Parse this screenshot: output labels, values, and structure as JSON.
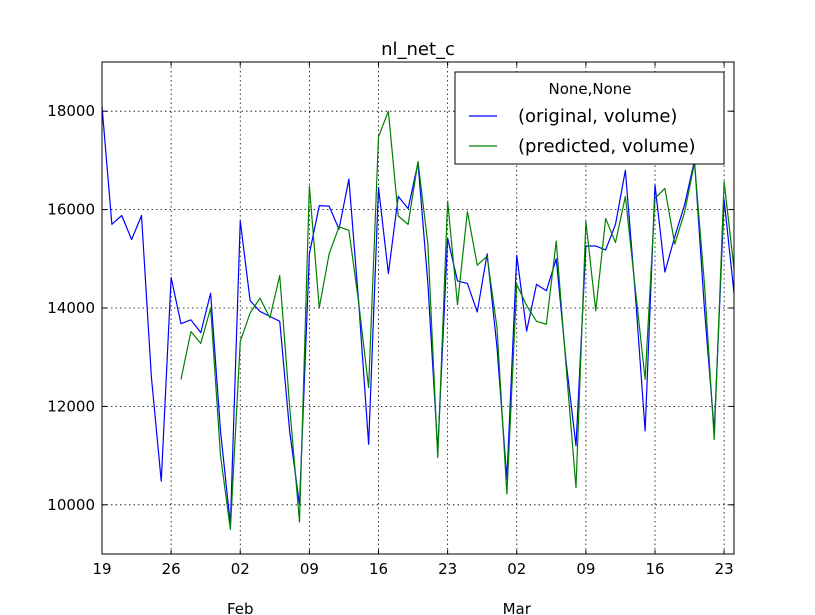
{
  "chart_data": {
    "type": "line",
    "title": "nl_net_c",
    "ylim": [
      9000,
      19000
    ],
    "yticks": [
      10000,
      12000,
      14000,
      16000,
      18000
    ],
    "x_start": "2014-01-19",
    "x_end": "2014-03-24",
    "xticks": [
      {
        "date": "2014-01-19",
        "label": "19"
      },
      {
        "date": "2014-01-26",
        "label": "26"
      },
      {
        "date": "2014-02-02",
        "label": "02"
      },
      {
        "date": "2014-02-09",
        "label": "09"
      },
      {
        "date": "2014-02-16",
        "label": "16"
      },
      {
        "date": "2014-02-23",
        "label": "23"
      },
      {
        "date": "2014-03-02",
        "label": "02"
      },
      {
        "date": "2014-03-09",
        "label": "09"
      },
      {
        "date": "2014-03-16",
        "label": "16"
      },
      {
        "date": "2014-03-23",
        "label": "23"
      }
    ],
    "month_labels": [
      {
        "date": "2014-02-02",
        "label": "Feb"
      },
      {
        "date": "2014-03-02",
        "label": "Mar"
      }
    ],
    "grid": true,
    "legend": {
      "title": "None,None",
      "placement": "top-right"
    },
    "series": [
      {
        "name": "(original, volume)",
        "color": "#0000ff",
        "x": [
          "2014-01-19",
          "2014-01-20",
          "2014-01-21",
          "2014-01-22",
          "2014-01-23",
          "2014-01-24",
          "2014-01-25",
          "2014-01-26",
          "2014-01-27",
          "2014-01-28",
          "2014-01-29",
          "2014-01-30",
          "2014-01-31",
          "2014-02-01",
          "2014-02-02",
          "2014-02-03",
          "2014-02-04",
          "2014-02-05",
          "2014-02-06",
          "2014-02-07",
          "2014-02-08",
          "2014-02-09",
          "2014-02-10",
          "2014-02-11",
          "2014-02-12",
          "2014-02-13",
          "2014-02-14",
          "2014-02-15",
          "2014-02-16",
          "2014-02-17",
          "2014-02-18",
          "2014-02-19",
          "2014-02-20",
          "2014-02-21",
          "2014-02-22",
          "2014-02-23",
          "2014-02-24",
          "2014-02-25",
          "2014-02-26",
          "2014-02-27",
          "2014-02-28",
          "2014-03-01",
          "2014-03-02",
          "2014-03-03",
          "2014-03-04",
          "2014-03-05",
          "2014-03-06",
          "2014-03-07",
          "2014-03-08",
          "2014-03-09",
          "2014-03-10",
          "2014-03-11",
          "2014-03-12",
          "2014-03-13",
          "2014-03-14",
          "2014-03-15",
          "2014-03-16",
          "2014-03-17",
          "2014-03-18",
          "2014-03-19",
          "2014-03-20",
          "2014-03-21",
          "2014-03-22",
          "2014-03-23",
          "2014-03-24"
        ],
        "values": [
          18100,
          15700,
          15880,
          15390,
          15880,
          12600,
          10480,
          14620,
          13680,
          13760,
          13500,
          14300,
          11500,
          9600,
          15770,
          14150,
          13930,
          13830,
          13730,
          11500,
          10000,
          15100,
          16080,
          16070,
          15600,
          16620,
          14100,
          11230,
          16450,
          14700,
          16270,
          16020,
          16950,
          14500,
          11100,
          15420,
          14550,
          14500,
          13920,
          15100,
          13200,
          10520,
          15070,
          13530,
          14480,
          14350,
          15000,
          12900,
          11200,
          15260,
          15260,
          15180,
          15700,
          16800,
          14300,
          11500,
          16500,
          14730,
          15450,
          16100,
          17000,
          14000,
          11500,
          16200,
          14300
        ]
      },
      {
        "name": "(predicted, volume)",
        "color": "#008000",
        "x": [
          "2014-01-27",
          "2014-01-28",
          "2014-01-29",
          "2014-01-30",
          "2014-01-31",
          "2014-02-01",
          "2014-02-02",
          "2014-02-03",
          "2014-02-04",
          "2014-02-05",
          "2014-02-06",
          "2014-02-07",
          "2014-02-08",
          "2014-02-09",
          "2014-02-10",
          "2014-02-11",
          "2014-02-12",
          "2014-02-13",
          "2014-02-14",
          "2014-02-15",
          "2014-02-16",
          "2014-02-17",
          "2014-02-18",
          "2014-02-19",
          "2014-02-20",
          "2014-02-21",
          "2014-02-22",
          "2014-02-23",
          "2014-02-24",
          "2014-02-25",
          "2014-02-26",
          "2014-02-27",
          "2014-02-28",
          "2014-03-01",
          "2014-03-02",
          "2014-03-03",
          "2014-03-04",
          "2014-03-05",
          "2014-03-06",
          "2014-03-07",
          "2014-03-08",
          "2014-03-09",
          "2014-03-10",
          "2014-03-11",
          "2014-03-12",
          "2014-03-13",
          "2014-03-14",
          "2014-03-15",
          "2014-03-16",
          "2014-03-17",
          "2014-03-18",
          "2014-03-19",
          "2014-03-20",
          "2014-03-21",
          "2014-03-22",
          "2014-03-23",
          "2014-03-24"
        ],
        "values": [
          12550,
          13520,
          13280,
          14000,
          11000,
          9500,
          13320,
          13900,
          14200,
          13800,
          14660,
          12000,
          9650,
          16480,
          14000,
          15100,
          15650,
          15580,
          14100,
          12380,
          17480,
          18000,
          15870,
          15700,
          16980,
          15300,
          10960,
          16170,
          14070,
          15960,
          14870,
          15050,
          13600,
          10220,
          14480,
          14050,
          13730,
          13670,
          15360,
          12800,
          10350,
          15760,
          13940,
          15820,
          15330,
          16270,
          14400,
          12550,
          16230,
          16430,
          15300,
          15950,
          16950,
          14500,
          11330,
          16570,
          14800
        ]
      }
    ]
  }
}
